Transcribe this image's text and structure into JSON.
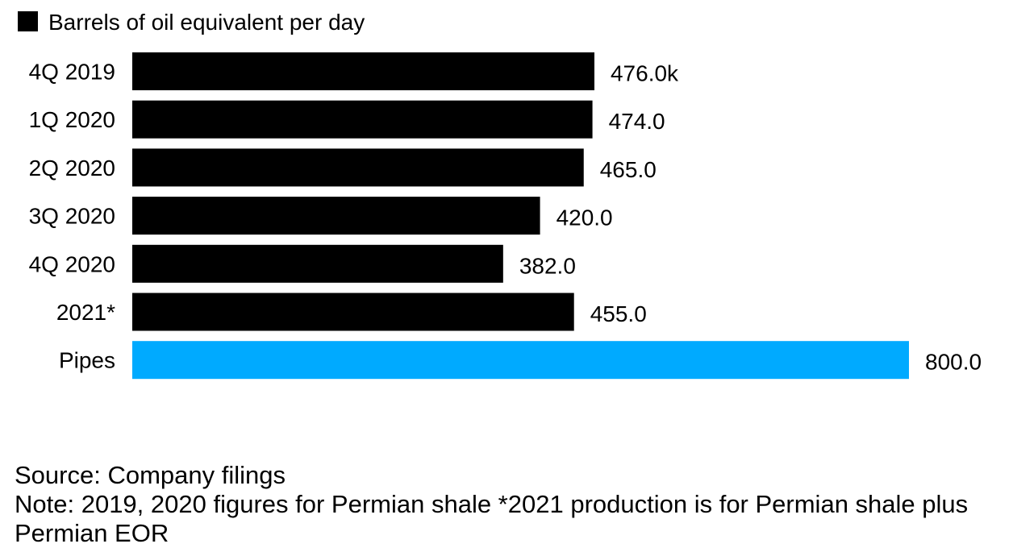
{
  "chart_data": {
    "type": "bar",
    "orientation": "horizontal",
    "categories": [
      "4Q 2019",
      "1Q 2020",
      "2Q 2020",
      "3Q 2020",
      "4Q 2020",
      "2021*",
      "Pipes"
    ],
    "values": [
      476.0,
      474.0,
      465.0,
      420.0,
      382.0,
      455.0,
      800.0
    ],
    "value_labels": [
      "476.0k",
      "474.0",
      "465.0",
      "420.0",
      "382.0",
      "455.0",
      "800.0"
    ],
    "series": [
      {
        "name": "Barrels of oil equivalent per day",
        "values": [
          476.0,
          474.0,
          465.0,
          420.0,
          382.0,
          455.0,
          800.0
        ]
      }
    ],
    "bar_colors": [
      "#000000",
      "#000000",
      "#000000",
      "#000000",
      "#000000",
      "#000000",
      "#00aaff"
    ],
    "legend": {
      "label": "Barrels of oil equivalent per day",
      "color": "#000000",
      "placement": "top-left"
    },
    "xlim": [
      0,
      800
    ],
    "grid": false,
    "title": "",
    "xlabel": "",
    "ylabel": ""
  },
  "footer": {
    "source": "Source: Company filings",
    "note": "Note: 2019, 2020 figures for Permian shale *2021 production is for Permian shale plus Permian EOR"
  }
}
